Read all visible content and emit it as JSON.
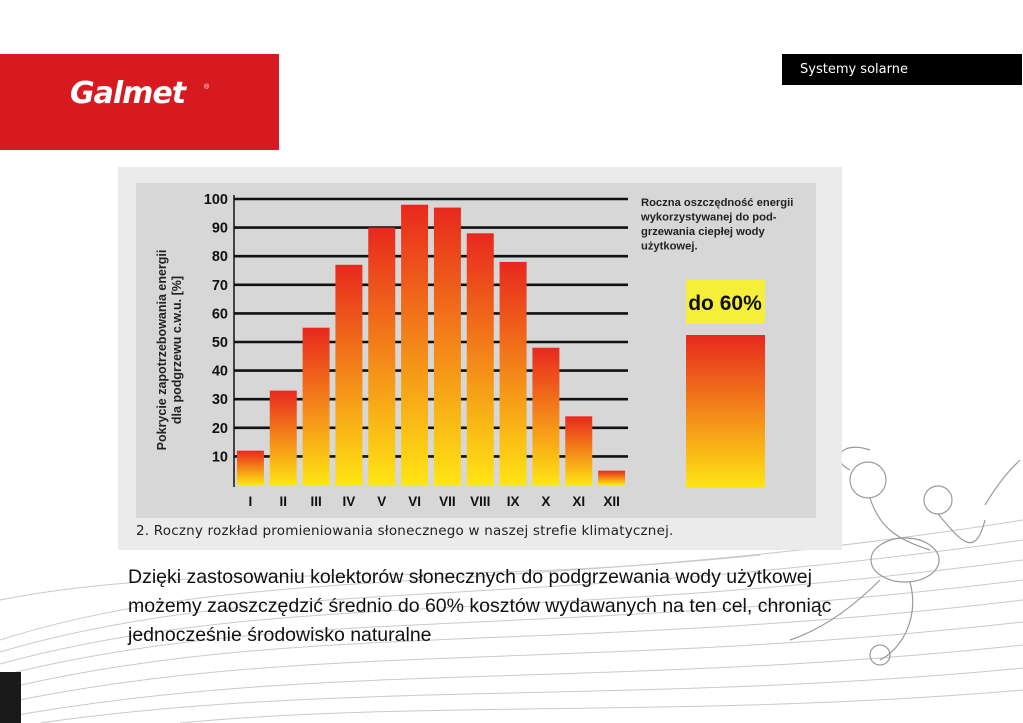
{
  "header": {
    "logo_text": "Galmet",
    "topic": "Systemy solarne"
  },
  "chart_data": {
    "type": "bar",
    "ylabel": "Pokrycie zapotrzebowania energii dla podgrzewu c.w.u. [%]",
    "ylim": [
      0,
      100
    ],
    "yticks": [
      10,
      20,
      30,
      40,
      50,
      60,
      70,
      80,
      90,
      100
    ],
    "categories": [
      "I",
      "II",
      "III",
      "IV",
      "V",
      "VI",
      "VII",
      "VIII",
      "IX",
      "X",
      "XI",
      "XII"
    ],
    "values": [
      12,
      33,
      55,
      77,
      90,
      98,
      97,
      88,
      78,
      48,
      24,
      5
    ],
    "grid": true,
    "side_text": "Roczna oszczędność energii wykorzystywanej do pod-grzewania ciepłej wody użytkowej.",
    "side_text_lines": [
      "Roczna oszczędność energii",
      "wykorzystywanej do pod-",
      "grzewania ciepłej wody",
      "użytkowej."
    ],
    "side_label": "do 60%",
    "side_value": 60,
    "bar_gradient": [
      "#e8281e",
      "#ffe514"
    ],
    "label_bg": "#f6ef3a",
    "caption": "2. Roczny rozkład promieniowania słonecznego w naszej strefie klimatycznej."
  },
  "body": {
    "text": "Dzięki zastosowaniu kolektorów słonecznych do podgrzewania wody użytkowej możemy zaoszczędzić średnio do 60% kosztów wydawanych na ten cel, chroniąc jednocześnie środowisko naturalne"
  },
  "colors": {
    "brand_red": "#d71920",
    "badge_bg": "#000000",
    "chart_bg": "#d7d7d7"
  }
}
